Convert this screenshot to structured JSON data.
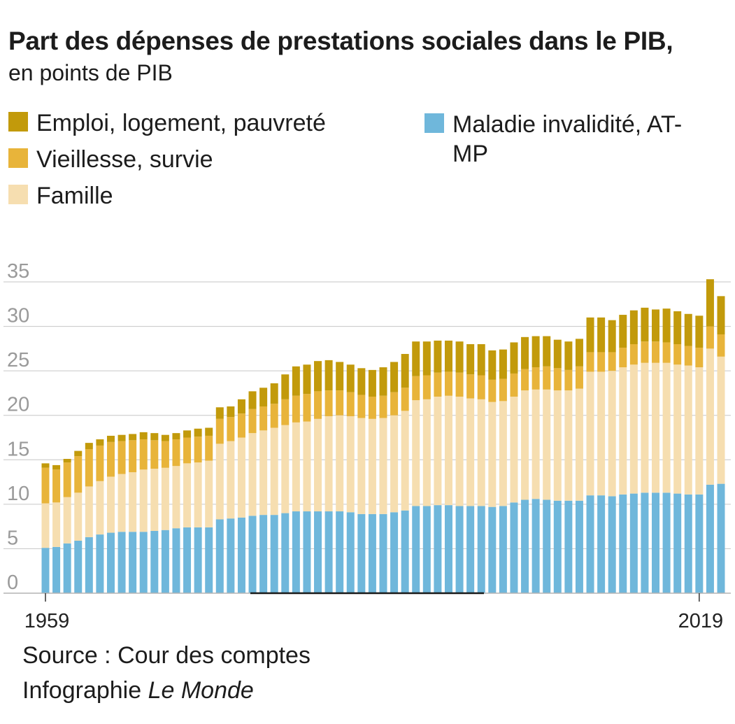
{
  "chart_data": {
    "type": "bar",
    "stacked": true,
    "title": "Part des dépenses de prestations sociales dans le PIB,",
    "subtitle": "en points de PIB",
    "ylim": [
      0,
      35
    ],
    "y_ticks": [
      0,
      5,
      10,
      15,
      20,
      25,
      30,
      35
    ],
    "x_ticks": [
      1959,
      2019
    ],
    "grid": true,
    "legend_position": "top",
    "x": [
      1959,
      1960,
      1961,
      1962,
      1963,
      1964,
      1965,
      1966,
      1967,
      1968,
      1969,
      1970,
      1971,
      1972,
      1973,
      1974,
      1975,
      1976,
      1977,
      1978,
      1979,
      1980,
      1981,
      1982,
      1983,
      1984,
      1985,
      1986,
      1987,
      1988,
      1989,
      1990,
      1991,
      1992,
      1993,
      1994,
      1995,
      1996,
      1997,
      1998,
      1999,
      2000,
      2001,
      2002,
      2003,
      2004,
      2005,
      2006,
      2007,
      2008,
      2009,
      2010,
      2011,
      2012,
      2013,
      2014,
      2015,
      2016,
      2017,
      2018,
      2019,
      2020,
      2021
    ],
    "series": [
      {
        "name": "Maladie invalidité, AT-MP",
        "color": "#6FB7DB",
        "values": [
          5.1,
          5.2,
          5.6,
          5.9,
          6.3,
          6.6,
          6.8,
          6.9,
          6.9,
          6.9,
          7.0,
          7.1,
          7.3,
          7.4,
          7.4,
          7.4,
          8.3,
          8.4,
          8.5,
          8.7,
          8.8,
          8.8,
          9.0,
          9.2,
          9.2,
          9.2,
          9.2,
          9.2,
          9.1,
          8.9,
          8.9,
          8.9,
          9.1,
          9.3,
          9.8,
          9.8,
          9.9,
          9.9,
          9.8,
          9.8,
          9.8,
          9.7,
          9.8,
          10.2,
          10.5,
          10.6,
          10.5,
          10.4,
          10.4,
          10.4,
          11.0,
          11.0,
          10.9,
          11.1,
          11.2,
          11.3,
          11.3,
          11.3,
          11.2,
          11.1,
          11.1,
          12.2,
          12.3
        ]
      },
      {
        "name": "Famille",
        "color": "#F6DEB0",
        "values": [
          5.0,
          5.0,
          5.2,
          5.4,
          5.7,
          6.0,
          6.3,
          6.5,
          6.7,
          7.0,
          7.0,
          7.0,
          7.0,
          7.2,
          7.3,
          7.5,
          8.5,
          8.7,
          9.0,
          9.3,
          9.5,
          9.8,
          9.9,
          10.0,
          10.1,
          10.4,
          10.7,
          10.8,
          10.8,
          10.8,
          10.7,
          10.8,
          10.9,
          11.2,
          11.9,
          12.0,
          12.2,
          12.3,
          12.3,
          12.1,
          12.0,
          11.8,
          11.8,
          11.9,
          12.3,
          12.3,
          12.4,
          12.4,
          12.4,
          12.6,
          13.9,
          13.9,
          14.1,
          14.3,
          14.5,
          14.6,
          14.6,
          14.6,
          14.5,
          14.5,
          14.3,
          15.3,
          14.3
        ]
      },
      {
        "name": "Vieillesse, survie",
        "color": "#E8B43A",
        "values": [
          4.0,
          3.7,
          3.9,
          4.1,
          4.2,
          4.0,
          3.9,
          3.7,
          3.6,
          3.4,
          3.2,
          3.0,
          3.0,
          2.9,
          2.9,
          2.8,
          2.8,
          2.7,
          2.7,
          2.7,
          2.7,
          2.7,
          2.9,
          3.0,
          3.1,
          3.1,
          2.9,
          2.8,
          2.7,
          2.6,
          2.5,
          2.5,
          2.6,
          2.6,
          2.7,
          2.7,
          2.7,
          2.7,
          2.7,
          2.7,
          2.7,
          2.5,
          2.5,
          2.6,
          2.4,
          2.5,
          2.6,
          2.5,
          2.3,
          2.5,
          2.2,
          2.2,
          2.1,
          2.2,
          2.3,
          2.4,
          2.4,
          2.3,
          2.3,
          2.2,
          2.2,
          2.5,
          2.5
        ]
      },
      {
        "name": "Emploi, logement, pauvreté",
        "color": "#C29A0B",
        "values": [
          0.5,
          0.5,
          0.4,
          0.6,
          0.7,
          0.7,
          0.7,
          0.7,
          0.7,
          0.8,
          0.8,
          0.7,
          0.7,
          0.8,
          0.9,
          0.9,
          1.3,
          1.2,
          1.6,
          2.0,
          2.1,
          2.3,
          2.8,
          3.3,
          3.3,
          3.4,
          3.4,
          3.2,
          3.1,
          3.0,
          3.0,
          3.2,
          3.4,
          3.8,
          3.9,
          3.8,
          3.6,
          3.5,
          3.5,
          3.4,
          3.5,
          3.3,
          3.3,
          3.5,
          3.6,
          3.5,
          3.4,
          3.2,
          3.2,
          3.1,
          3.9,
          3.9,
          3.6,
          3.7,
          3.8,
          3.8,
          3.6,
          3.8,
          3.7,
          3.6,
          3.6,
          5.3,
          4.3
        ]
      }
    ]
  },
  "source": {
    "line": "Source : Cour des comptes",
    "credit_prefix": "Infographie",
    "credit_brand": "Le Monde"
  }
}
